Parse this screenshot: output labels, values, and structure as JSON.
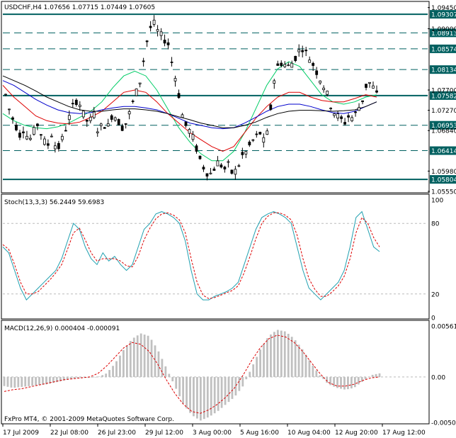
{
  "chart_data": [
    {
      "type": "candlestick",
      "title": "USDCHF,H4  1.07656 1.07715 1.07449 1.07605",
      "ylim": [
        1.0555,
        1.0955
      ],
      "y_ticks": [
        "1.09450",
        "1.09000",
        "1.07700",
        "1.07270",
        "1.06840",
        "1.05980",
        "1.05550"
      ],
      "levels": [
        {
          "value": 1.09307,
          "label": "1.09307",
          "style": "solid"
        },
        {
          "value": 1.08913,
          "label": "1.08913",
          "style": "dashed"
        },
        {
          "value": 1.08574,
          "label": "1.08574",
          "style": "dashed"
        },
        {
          "value": 1.08134,
          "label": "1.08134",
          "style": "dashed"
        },
        {
          "value": 1.07582,
          "label": "1.07582",
          "style": "solid"
        },
        {
          "value": 1.06953,
          "label": "1.06953",
          "style": "dashed"
        },
        {
          "value": 1.06414,
          "label": "1.06414",
          "style": "dashed"
        },
        {
          "value": 1.05804,
          "label": "1.05804",
          "style": "solid"
        }
      ],
      "close_path": [
        1.076,
        1.072,
        1.07,
        1.0675,
        1.069,
        1.066,
        1.068,
        1.07,
        1.0665,
        1.065,
        1.068,
        1.064,
        1.066,
        1.069,
        1.072,
        1.075,
        1.074,
        1.071,
        1.07,
        1.072,
        1.068,
        1.07,
        1.069,
        1.072,
        1.071,
        1.069,
        1.07,
        1.073,
        1.076,
        1.079,
        1.085,
        1.09,
        1.091,
        1.089,
        1.088,
        1.087,
        1.082,
        1.078,
        1.072,
        1.069,
        1.068,
        1.065,
        1.062,
        1.06,
        1.059,
        1.0605,
        1.062,
        1.06,
        1.061,
        1.059,
        1.0605,
        1.063,
        1.064,
        1.066,
        1.067,
        1.068,
        1.065,
        1.072,
        1.08,
        1.083,
        1.0825,
        1.082,
        1.083,
        1.085,
        1.086,
        1.0845,
        1.083,
        1.081,
        1.079,
        1.077,
        1.074,
        1.072,
        1.071,
        1.07,
        1.0715,
        1.071,
        1.073,
        1.075,
        1.079,
        1.078,
        1.076
      ],
      "ma_series": [
        {
          "color": "#00cc66",
          "values": [
            1.072,
            1.0705,
            1.0695,
            1.069,
            1.0688,
            1.0692,
            1.07,
            1.0712,
            1.0725,
            1.0745,
            1.0775,
            1.08,
            1.081,
            1.08,
            1.077,
            1.073,
            1.069,
            1.066,
            1.0635,
            1.062,
            1.062,
            1.064,
            1.068,
            1.073,
            1.078,
            1.0815,
            1.083,
            1.082,
            1.079,
            1.076,
            1.0745,
            1.074,
            1.0745,
            1.0755,
            1.076
          ]
        },
        {
          "color": "#dd0000",
          "values": [
            1.078,
            1.0755,
            1.0735,
            1.0715,
            1.0705,
            1.07,
            1.0698,
            1.0702,
            1.0712,
            1.0725,
            1.0745,
            1.0765,
            1.077,
            1.0765,
            1.0745,
            1.072,
            1.07,
            1.068,
            1.0665,
            1.065,
            1.064,
            1.065,
            1.068,
            1.071,
            1.0735,
            1.0755,
            1.0765,
            1.0765,
            1.0755,
            1.0748,
            1.0745,
            1.0745,
            1.0752,
            1.076,
            1.0755
          ]
        },
        {
          "color": "#0000cc",
          "values": [
            1.079,
            1.078,
            1.0765,
            1.075,
            1.0738,
            1.0728,
            1.0722,
            1.072,
            1.0722,
            1.0728,
            1.0732,
            1.0735,
            1.0735,
            1.0732,
            1.0728,
            1.072,
            1.071,
            1.07,
            1.0695,
            1.069,
            1.0688,
            1.069,
            1.07,
            1.0712,
            1.0725,
            1.0735,
            1.074,
            1.074,
            1.0735,
            1.0728,
            1.0722,
            1.072,
            1.0725,
            1.0735,
            1.0745
          ]
        },
        {
          "color": "#000000",
          "values": [
            1.08,
            1.079,
            1.078,
            1.0768,
            1.0755,
            1.0745,
            1.0735,
            1.0728,
            1.0725,
            1.0725,
            1.0728,
            1.073,
            1.073,
            1.0728,
            1.0725,
            1.072,
            1.0713,
            1.0707,
            1.07,
            1.0695,
            1.069,
            1.069,
            1.0695,
            1.0702,
            1.0712,
            1.072,
            1.0725,
            1.0727,
            1.0727,
            1.0726,
            1.0725,
            1.0726,
            1.0728,
            1.0735,
            1.0745
          ]
        }
      ]
    },
    {
      "type": "line",
      "title": "Stoch(13,3,3) 56.2449 59.6983",
      "ylim": [
        0,
        100
      ],
      "y_ticks": [
        "100",
        "80",
        "20",
        "0"
      ],
      "levels": [
        80,
        20
      ],
      "series": [
        {
          "color": "#20a0b0",
          "values": [
            60,
            55,
            40,
            25,
            15,
            20,
            25,
            30,
            35,
            40,
            50,
            65,
            80,
            75,
            60,
            50,
            45,
            55,
            48,
            52,
            45,
            40,
            45,
            60,
            75,
            80,
            88,
            90,
            88,
            85,
            80,
            65,
            40,
            20,
            15,
            15,
            18,
            20,
            22,
            25,
            30,
            45,
            60,
            75,
            85,
            88,
            90,
            88,
            85,
            80,
            60,
            40,
            25,
            20,
            15,
            20,
            25,
            30,
            40,
            60,
            85,
            90,
            75,
            60,
            56
          ]
        },
        {
          "color": "#dd0000",
          "dash": true,
          "values": [
            62,
            58,
            45,
            30,
            20,
            20,
            22,
            27,
            32,
            38,
            45,
            58,
            72,
            76,
            66,
            55,
            48,
            50,
            50,
            50,
            48,
            44,
            43,
            52,
            66,
            76,
            84,
            88,
            89,
            87,
            83,
            72,
            50,
            30,
            19,
            16,
            17,
            19,
            21,
            23,
            27,
            38,
            52,
            67,
            80,
            86,
            89,
            89,
            87,
            83,
            70,
            50,
            33,
            24,
            18,
            18,
            22,
            27,
            35,
            50,
            72,
            85,
            80,
            68,
            60
          ]
        }
      ]
    },
    {
      "type": "bar",
      "title": "MACD(12,26,9) 0.000404 -0.000091",
      "ylim": [
        -0.005,
        0.00561
      ],
      "y_ticks": [
        "0.00561",
        "0.00",
        "-0.00501"
      ],
      "histogram": [
        -0.001,
        -0.0012,
        -0.0011,
        -0.001,
        -0.0009,
        -0.0008,
        -0.0006,
        -0.0004,
        -0.0002,
        -0.0001,
        -0.0001,
        0.0,
        0.0004,
        0.0015,
        0.003,
        0.0042,
        0.0048,
        0.0045,
        0.003,
        0.001,
        -0.001,
        -0.003,
        -0.0042,
        -0.0048,
        -0.0044,
        -0.0038,
        -0.003,
        -0.0022,
        -0.001,
        0.001,
        0.003,
        0.0045,
        0.0052,
        0.005,
        0.0042,
        0.003,
        0.0015,
        0.0002,
        -0.0008,
        -0.0012,
        -0.0014,
        -0.0012,
        -0.0005,
        0.0002,
        0.0004
      ],
      "signal": [
        -0.0016,
        -0.0014,
        -0.0013,
        -0.0011,
        -0.0009,
        -0.0007,
        -0.0005,
        -0.0003,
        -0.0002,
        -0.0001,
        0.0,
        0.0004,
        0.0012,
        0.0022,
        0.0032,
        0.0038,
        0.0036,
        0.0028,
        0.0014,
        -0.0003,
        -0.0018,
        -0.003,
        -0.0038,
        -0.004,
        -0.0036,
        -0.003,
        -0.0022,
        -0.0012,
        0.0002,
        0.0018,
        0.0032,
        0.0042,
        0.0046,
        0.0044,
        0.0038,
        0.0028,
        0.0016,
        0.0004,
        -0.0006,
        -0.001,
        -0.001,
        -0.0008,
        -0.0004,
        -0.0001,
        0.0
      ]
    }
  ],
  "x_axis": {
    "labels": [
      "17 Jul 2009",
      "22 Jul 08:00",
      "26 Jul 23:00",
      "29 Jul 12:00",
      "3 Aug 00:00",
      "5 Aug 16:00",
      "10 Aug 04:00",
      "12 Aug 20:00",
      "17 Aug 12:00"
    ]
  },
  "footer": "FxPro MT4, © 2001-2009 MetaQuotes Software Corp.",
  "colors": {
    "level_tag": "#006060",
    "level_line": "#006060",
    "candle": "#000000"
  }
}
